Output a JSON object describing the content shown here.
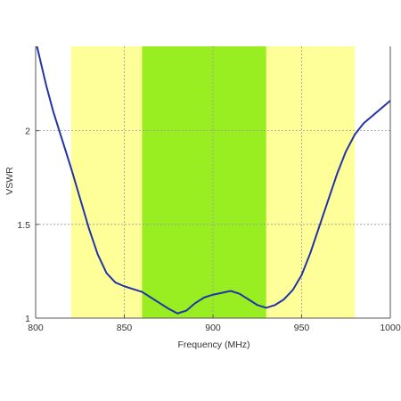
{
  "chart_data": {
    "type": "line",
    "title": "",
    "xlabel": "Frequency (MHz)",
    "ylabel": "VSWR",
    "xlim": [
      800,
      1000
    ],
    "ylim": [
      1,
      2.45
    ],
    "xticks": [
      800,
      850,
      900,
      950,
      1000
    ],
    "yticks": [
      1,
      1.5,
      2
    ],
    "xtick_labels": [
      "800",
      "850",
      "900",
      "950",
      "1000"
    ],
    "ytick_labels": [
      "1",
      "1.5",
      "2"
    ],
    "grid": true,
    "bands": [
      {
        "x_start": 820,
        "x_end": 980,
        "color": "#ffff99"
      },
      {
        "x_start": 860,
        "x_end": 930,
        "color": "#99ee22"
      }
    ],
    "series": [
      {
        "color": "#2233aa",
        "x": [
          800,
          803,
          806,
          810,
          815,
          820,
          825,
          830,
          835,
          840,
          845,
          850,
          855,
          860,
          865,
          870,
          875,
          880,
          885,
          890,
          895,
          900,
          905,
          910,
          915,
          920,
          925,
          930,
          935,
          940,
          945,
          950,
          955,
          960,
          965,
          970,
          975,
          980,
          985,
          990,
          995,
          1000
        ],
        "y": [
          2.48,
          2.36,
          2.24,
          2.1,
          1.95,
          1.8,
          1.64,
          1.48,
          1.34,
          1.24,
          1.19,
          1.17,
          1.155,
          1.14,
          1.11,
          1.08,
          1.05,
          1.025,
          1.04,
          1.08,
          1.11,
          1.125,
          1.135,
          1.145,
          1.13,
          1.1,
          1.07,
          1.055,
          1.07,
          1.1,
          1.15,
          1.23,
          1.35,
          1.49,
          1.63,
          1.77,
          1.89,
          1.98,
          2.04,
          2.08,
          2.12,
          2.16
        ]
      }
    ]
  }
}
